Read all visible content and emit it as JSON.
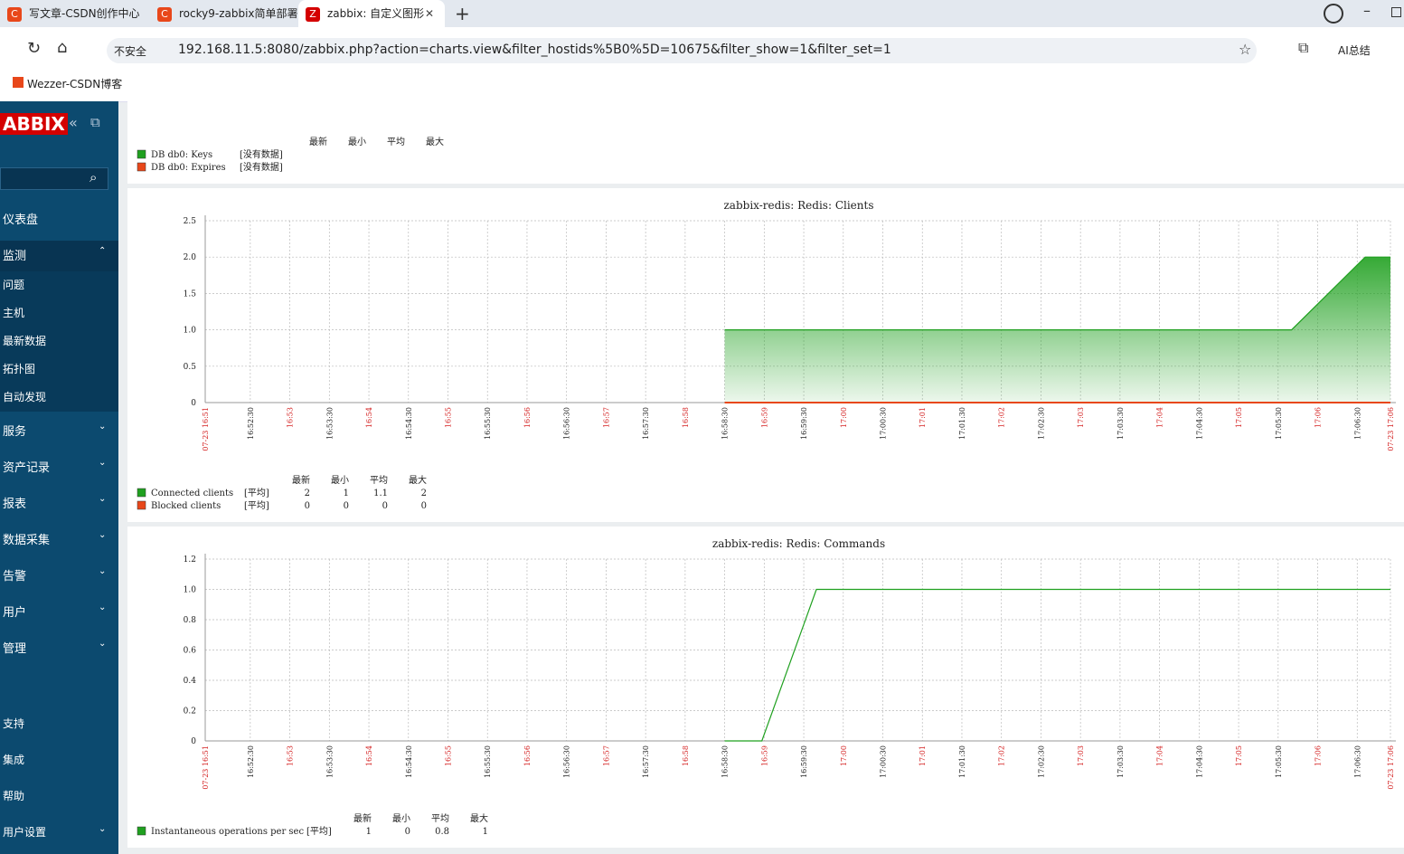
{
  "browser": {
    "tabs": [
      "写文章-CSDN创作中心",
      "rocky9-zabbix简单部署",
      "zabbix: 自定义图形"
    ],
    "warning": "不安全",
    "url": "192.168.11.5:8080/zabbix.php?action=charts.view&filter_hostids%5B0%5D=10675&filter_show=1&filter_set=1",
    "ai": "AI总结",
    "bookmark": "Wezzer-CSDN博客"
  },
  "sidebar": {
    "logo": "ABBIX",
    "menu": [
      "仪表盘",
      "监测"
    ],
    "submenu": [
      "问题",
      "主机",
      "最新数据",
      "拓扑图",
      "自动发现"
    ],
    "menu_more": [
      "服务",
      "资产记录",
      "报表",
      "数据采集",
      "告警",
      "用户",
      "管理"
    ],
    "bottom": [
      "支持",
      "集成",
      "帮助",
      "用户设置"
    ]
  },
  "legend_headers": [
    "最新",
    "最小",
    "平均",
    "最大"
  ],
  "timeline": {
    "xlim": [
      51.93,
      66.92
    ],
    "xticks": [
      {
        "value": 51.93,
        "label": "07-23 16:51"
      },
      {
        "value": 52.5,
        "label": "16:52:30"
      },
      {
        "value": 53,
        "label": "16:53"
      },
      {
        "value": 53.5,
        "label": "16:53:30"
      },
      {
        "value": 54,
        "label": "16:54"
      },
      {
        "value": 54.5,
        "label": "16:54:30"
      },
      {
        "value": 55,
        "label": "16:55"
      },
      {
        "value": 55.5,
        "label": "16:55:30"
      },
      {
        "value": 56,
        "label": "16:56"
      },
      {
        "value": 56.5,
        "label": "16:56:30"
      },
      {
        "value": 57,
        "label": "16:57"
      },
      {
        "value": 57.5,
        "label": "16:57:30"
      },
      {
        "value": 58,
        "label": "16:58"
      },
      {
        "value": 58.5,
        "label": "16:58:30"
      },
      {
        "value": 59,
        "label": "16:59"
      },
      {
        "value": 59.5,
        "label": "16:59:30"
      },
      {
        "value": 60,
        "label": "17:00"
      },
      {
        "value": 60.5,
        "label": "17:00:30"
      },
      {
        "value": 61,
        "label": "17:01"
      },
      {
        "value": 61.5,
        "label": "17:01:30"
      },
      {
        "value": 62,
        "label": "17:02"
      },
      {
        "value": 62.5,
        "label": "17:02:30"
      },
      {
        "value": 63,
        "label": "17:03"
      },
      {
        "value": 63.5,
        "label": "17:03:30"
      },
      {
        "value": 64,
        "label": "17:04"
      },
      {
        "value": 64.5,
        "label": "17:04:30"
      },
      {
        "value": 65,
        "label": "17:05"
      },
      {
        "value": 65.5,
        "label": "17:05:30"
      },
      {
        "value": 66,
        "label": "17:06"
      },
      {
        "value": 66.5,
        "label": "17:06:30"
      },
      {
        "value": 66.92,
        "label": "07-23 17:06"
      }
    ]
  },
  "keys_graph": {
    "items": [
      {
        "name": "DB db0: Keys",
        "color": "#1fa01f",
        "status": "[没有数据]"
      },
      {
        "name": "DB db0: Expires",
        "color": "#e8471a",
        "status": "[没有数据]"
      }
    ]
  },
  "graphs": [
    {
      "title": "zabbix-redis: Redis: Clients",
      "type": "area",
      "ylim": [
        0,
        2.5
      ],
      "yticks": [
        0,
        0.5,
        {
          "value": 1,
          "label": "1.0"
        },
        1.5,
        {
          "value": 2,
          "label": "2.0"
        },
        2.5
      ],
      "series": [
        {
          "name": "Connected clients",
          "color": "#1fa01f",
          "func": "[平均]",
          "x": [
            58.5,
            65.67,
            66.6,
            66.92
          ],
          "values": [
            1,
            1,
            2,
            2
          ],
          "stats": [
            2,
            1,
            1.1,
            2
          ]
        },
        {
          "name": "Blocked clients",
          "color": "#e8471a",
          "func": "[平均]",
          "x": [
            58.5,
            66.92
          ],
          "values": [
            0,
            0
          ],
          "stats": [
            0,
            0,
            0,
            0
          ]
        }
      ]
    },
    {
      "title": "zabbix-redis: Redis: Commands",
      "type": "line",
      "ylim": [
        0,
        1.2
      ],
      "yticks": [
        0,
        0.2,
        0.4,
        0.6,
        0.8,
        {
          "value": 1,
          "label": "1.0"
        },
        1.2
      ],
      "series": [
        {
          "name": "Instantaneous operations per sec",
          "color": "#1fa01f",
          "func": "[平均]",
          "x": [
            58.5,
            58.97,
            59.66,
            66.92
          ],
          "values": [
            0,
            0,
            1,
            1
          ],
          "stats": [
            1,
            0,
            0.8,
            1
          ]
        }
      ]
    }
  ]
}
